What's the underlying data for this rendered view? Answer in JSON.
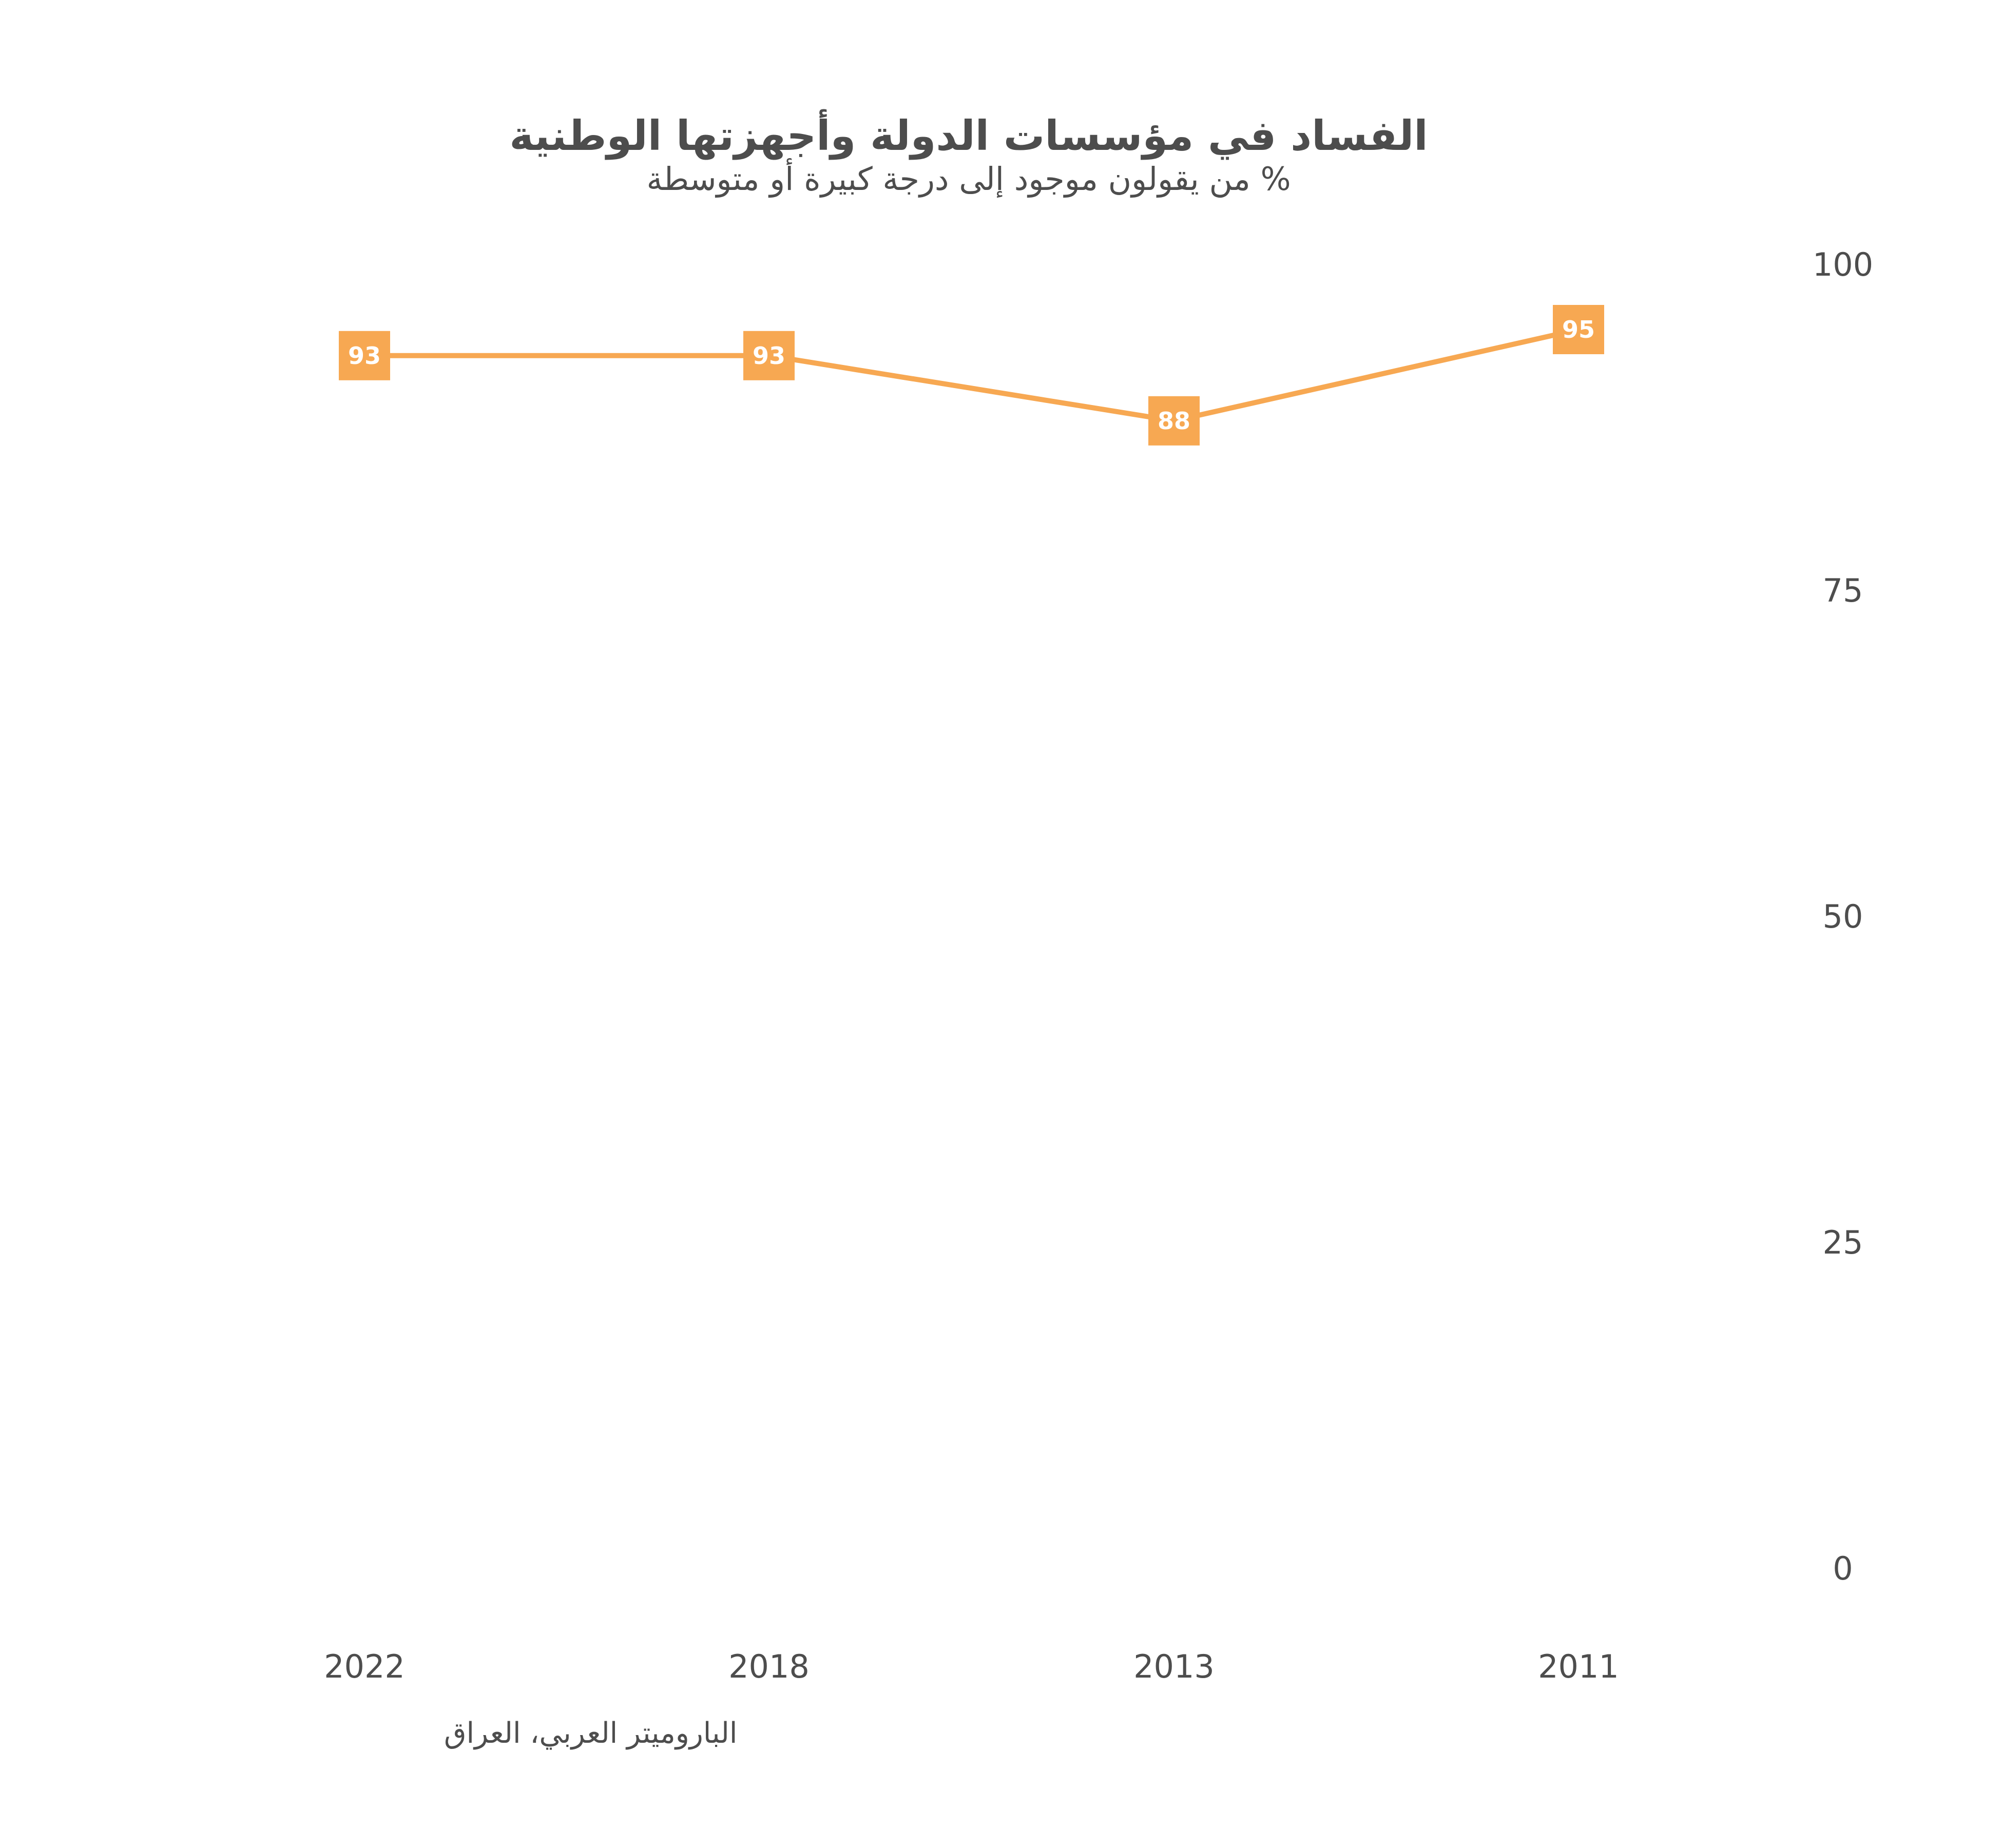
{
  "chart_data": {
    "type": "line",
    "title": "الفساد في مؤسسات الدولة وأجهزتها الوطنية",
    "subtitle": "% من يقولون موجود إلى درجة كبيرة أو متوسطة",
    "source": "الباروميتر العربي، العراق",
    "categories": [
      "2022",
      "2018",
      "2013",
      "2011"
    ],
    "series": [
      {
        "values": [
          93,
          93,
          88,
          95
        ],
        "color": "#f7a852"
      }
    ],
    "data_labels": [
      "93",
      "93",
      "88",
      "95"
    ],
    "y_ticks": [
      "100",
      "75",
      "50",
      "25",
      "0"
    ],
    "y_tick_values": [
      100,
      75,
      50,
      25,
      0
    ],
    "ylim": [
      0,
      100
    ],
    "grid": false,
    "legend": "none",
    "y_axis_position": "right",
    "colors": {
      "line": "#f7a852",
      "label_box": "#f7a852",
      "label_text": "#ffffff",
      "text": "#4d4d4d"
    }
  }
}
